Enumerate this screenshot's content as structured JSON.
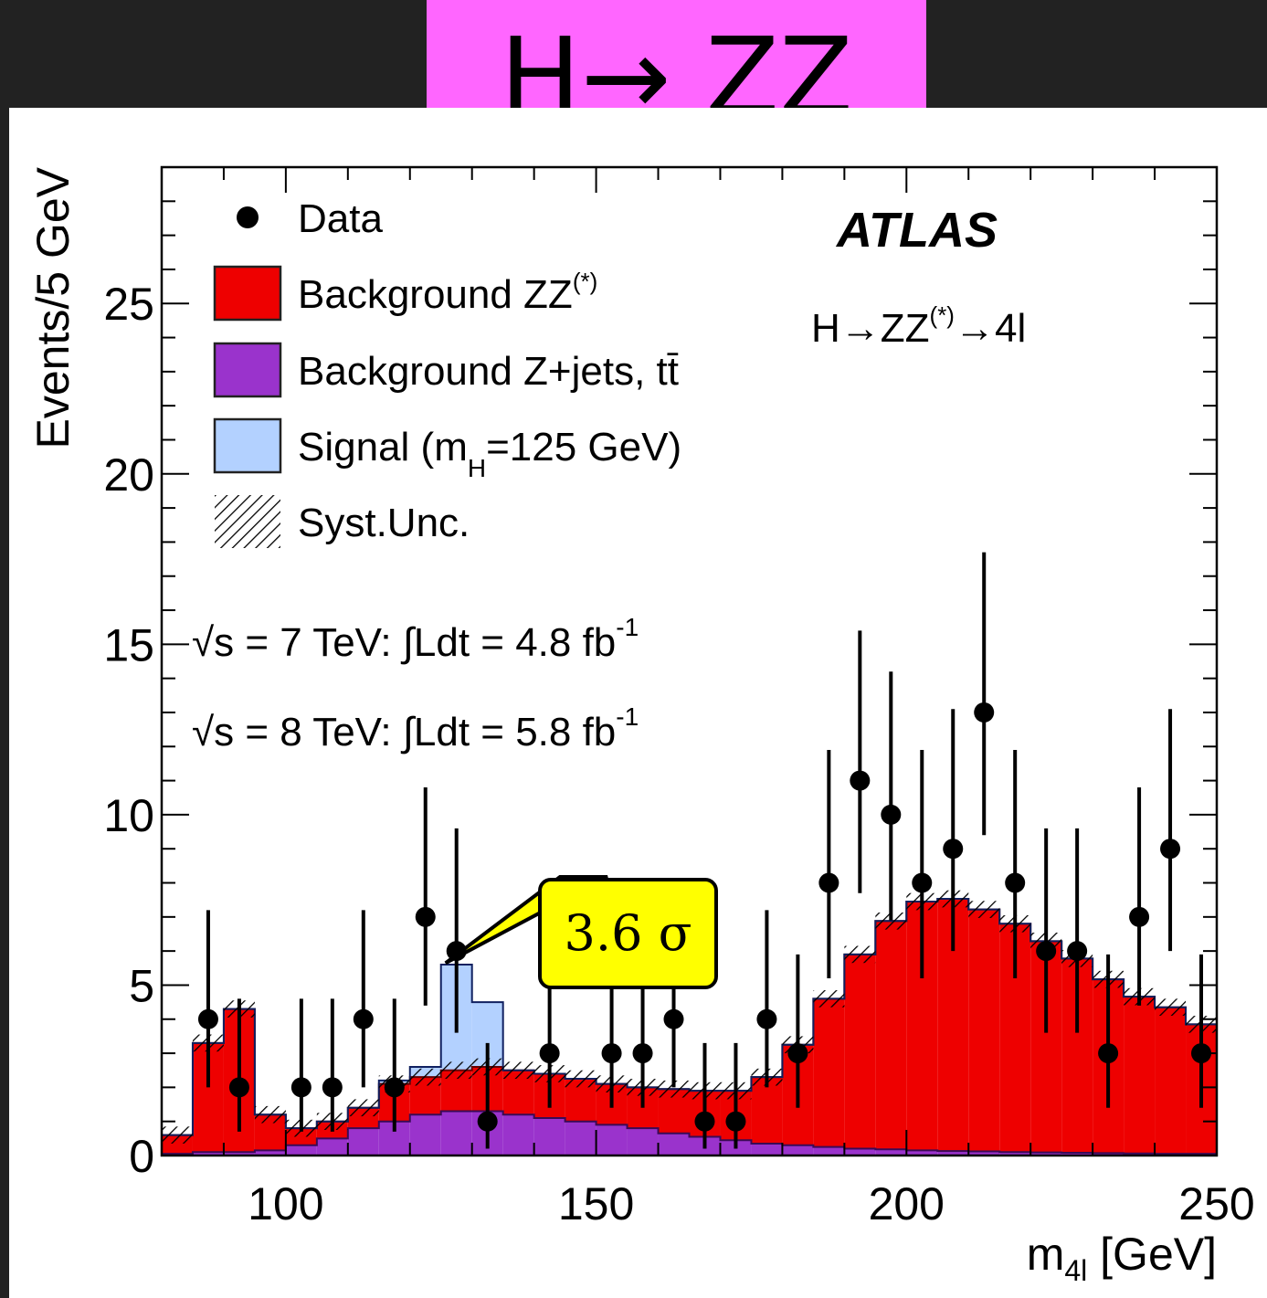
{
  "slide_title": "H→ ZZ",
  "callout": "3.6 σ",
  "colors": {
    "background_zz": "#ee0000",
    "background_zjets_tt": "#9a33cc",
    "signal": "#b3d1ff",
    "slide_title_bg": "#ff66ff",
    "callout_bg": "#ffff00"
  },
  "chart_data": {
    "type": "bar",
    "ylabel": "Events/5 GeV",
    "xlabel": "m",
    "xlabel_sub": "4l",
    "xlabel_unit": "[GeV]",
    "experiment": "ATLAS",
    "process": {
      "text": "H→ZZ",
      "sup": "(*)",
      "tail": "→4l"
    },
    "lumi": [
      {
        "text": "√s = 7 TeV: ∫Ldt = 4.8 fb",
        "sup": "-1"
      },
      {
        "text": "√s = 8 TeV: ∫Ldt = 5.8 fb",
        "sup": "-1"
      }
    ],
    "legend": [
      {
        "key": "data",
        "label": "Data"
      },
      {
        "key": "zz",
        "label": "Background ZZ",
        "sup": "(*)"
      },
      {
        "key": "zjets",
        "label": "Background Z+jets, tt̄"
      },
      {
        "key": "signal",
        "label": "Signal (m",
        "sub": "H",
        "tail": "=125 GeV)"
      },
      {
        "key": "syst",
        "label": "Syst.Unc."
      }
    ],
    "xlim": [
      80,
      250
    ],
    "ylim": [
      0,
      29
    ],
    "xticks": [
      100,
      150,
      200,
      250
    ],
    "yticks": [
      0,
      5,
      10,
      15,
      20,
      25
    ],
    "bin_width": 5,
    "bin_lows": [
      80,
      85,
      90,
      95,
      100,
      105,
      110,
      115,
      120,
      125,
      130,
      135,
      140,
      145,
      150,
      155,
      160,
      165,
      170,
      175,
      180,
      185,
      190,
      195,
      200,
      205,
      210,
      215,
      220,
      225,
      230,
      235,
      240,
      245
    ],
    "series": [
      {
        "name": "Background Z+jets, tt̄",
        "key": "zjets",
        "values": [
          0.05,
          0.1,
          0.1,
          0.15,
          0.3,
          0.5,
          0.8,
          1.0,
          1.2,
          1.3,
          1.3,
          1.2,
          1.1,
          1.0,
          0.9,
          0.8,
          0.65,
          0.55,
          0.45,
          0.35,
          0.3,
          0.25,
          0.2,
          0.18,
          0.15,
          0.13,
          0.12,
          0.1,
          0.09,
          0.08,
          0.07,
          0.06,
          0.05,
          0.05
        ]
      },
      {
        "name": "Background ZZ",
        "key": "zz",
        "values": [
          0.55,
          3.2,
          4.2,
          1.05,
          0.5,
          0.5,
          0.6,
          1.1,
          1.1,
          1.2,
          1.3,
          1.3,
          1.3,
          1.25,
          1.2,
          1.2,
          1.3,
          1.35,
          1.45,
          1.95,
          2.95,
          4.35,
          5.7,
          6.7,
          7.3,
          7.4,
          7.1,
          6.7,
          6.2,
          5.7,
          5.1,
          4.6,
          4.3,
          3.8
        ]
      },
      {
        "name": "Signal (mH=125 GeV)",
        "key": "signal",
        "values": [
          0,
          0,
          0,
          0,
          0,
          0,
          0,
          0.1,
          0.3,
          3.1,
          1.9,
          0,
          0,
          0,
          0,
          0,
          0,
          0,
          0,
          0,
          0,
          0,
          0,
          0,
          0,
          0,
          0,
          0,
          0,
          0,
          0,
          0,
          0,
          0
        ]
      }
    ],
    "data_points": {
      "x": [
        87.5,
        92.5,
        102.5,
        107.5,
        112.5,
        117.5,
        122.5,
        127.5,
        132.5,
        142.5,
        152.5,
        157.5,
        162.5,
        167.5,
        172.5,
        177.5,
        182.5,
        187.5,
        192.5,
        197.5,
        202.5,
        207.5,
        212.5,
        217.5,
        222.5,
        227.5,
        232.5,
        237.5,
        242.5,
        247.5
      ],
      "y": [
        4,
        2,
        2,
        2,
        4,
        2,
        7,
        6,
        1,
        3,
        3,
        3,
        4,
        1,
        1,
        4,
        3,
        8,
        11,
        10,
        8,
        9,
        13,
        8,
        6,
        6,
        3,
        7,
        9,
        3
      ],
      "err_low": [
        2,
        1.3,
        1.3,
        1.3,
        2,
        1.3,
        2.6,
        2.4,
        0.8,
        1.6,
        1.6,
        1.6,
        2,
        0.8,
        0.8,
        2,
        1.6,
        2.8,
        3.3,
        3.1,
        2.8,
        3,
        3.6,
        2.8,
        2.4,
        2.4,
        1.6,
        2.6,
        3,
        1.6
      ],
      "err_high": [
        3.2,
        2.6,
        2.6,
        2.6,
        3.2,
        2.6,
        3.8,
        3.6,
        2.3,
        2.9,
        2.9,
        2.9,
        3.2,
        2.3,
        2.3,
        3.2,
        2.9,
        3.9,
        4.4,
        4.2,
        3.9,
        4.1,
        4.7,
        3.9,
        3.6,
        3.6,
        2.9,
        3.8,
        4.1,
        2.9
      ]
    }
  }
}
